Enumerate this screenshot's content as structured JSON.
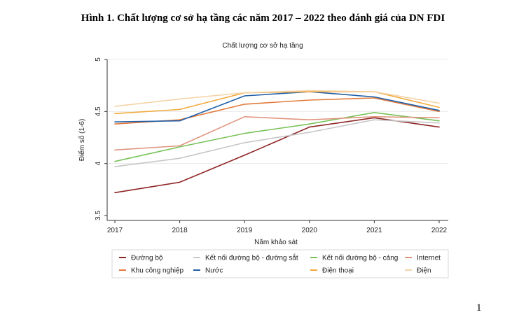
{
  "caption": "Hình 1. Chất lượng cơ sở hạ tầng các năm 2017 – 2022 theo đánh giá của DN FDI",
  "page_number": "1",
  "chart_data": {
    "type": "line",
    "title": "Chất lượng cơ sở hạ tầng",
    "xlabel": "Năm khảo sát",
    "ylabel": "Điểm số (1-6)",
    "x": [
      2017,
      2018,
      2019,
      2020,
      2021,
      2022
    ],
    "x_tick_labels": [
      "2017",
      "2018",
      "2019",
      "2020",
      "2021",
      "2022"
    ],
    "y_ticks": [
      3.5,
      4,
      4.5,
      5
    ],
    "y_tick_labels": [
      "3.5",
      "4",
      "4.5",
      "5"
    ],
    "ylim": [
      3.5,
      5
    ],
    "grid": "horizontal",
    "legend_position": "bottom",
    "series": [
      {
        "name": "Đường bộ",
        "color": "#8f2626",
        "values": [
          3.72,
          3.82,
          4.08,
          4.35,
          4.44,
          4.35
        ]
      },
      {
        "name": "Kết nối đường bộ - đường sắt",
        "color": "#c7c7c7",
        "values": [
          3.97,
          4.05,
          4.2,
          4.3,
          4.42,
          4.39
        ]
      },
      {
        "name": "Kết nối đường bộ - cảng",
        "color": "#79c25a",
        "values": [
          4.02,
          4.16,
          4.29,
          4.38,
          4.49,
          4.41
        ]
      },
      {
        "name": "Internet",
        "color": "#e0957f",
        "values": [
          4.13,
          4.17,
          4.45,
          4.42,
          4.45,
          4.44
        ]
      },
      {
        "name": "Khu công nghiệp",
        "color": "#e37a3a",
        "values": [
          4.38,
          4.42,
          4.57,
          4.61,
          4.63,
          4.5
        ]
      },
      {
        "name": "Nước",
        "color": "#1f5faa",
        "values": [
          4.4,
          4.41,
          4.65,
          4.69,
          4.64,
          4.51
        ]
      },
      {
        "name": "Điện thoại",
        "color": "#f2a93b",
        "values": [
          4.48,
          4.52,
          4.68,
          4.69,
          4.69,
          4.54
        ]
      },
      {
        "name": "Điện",
        "color": "#f5d3a8",
        "values": [
          4.55,
          4.62,
          4.68,
          4.7,
          4.69,
          4.58
        ]
      }
    ]
  }
}
